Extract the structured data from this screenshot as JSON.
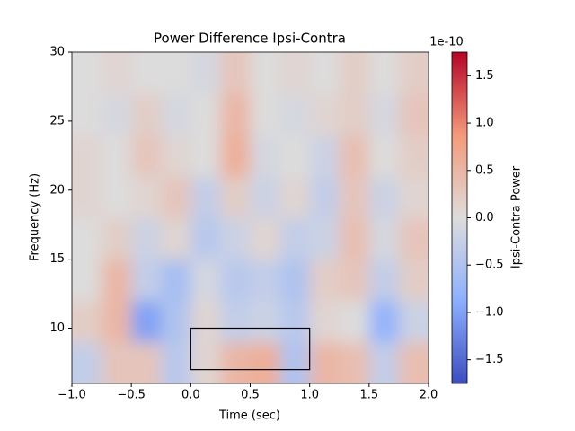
{
  "chart_data": {
    "type": "heatmap",
    "title": "Power Difference Ipsi-Contra",
    "x_label": "Time (sec)",
    "y_label": "Frequency (Hz)",
    "colorbar_label": "Ipsi-Contra Power",
    "colorbar_offset": "1e-10",
    "colormap": "coolwarm",
    "clim": [
      -1.75,
      1.75
    ],
    "xbins": [
      -1,
      -0.75,
      -0.5,
      -0.25,
      0,
      0.25,
      0.5,
      0.75,
      1,
      1.25,
      1.5,
      1.75,
      2
    ],
    "ybins": [
      6,
      9,
      12,
      15,
      18,
      21,
      24,
      27,
      30
    ],
    "z": [
      [
        -0.3,
        0.3,
        0.3,
        -0.4,
        0.1,
        0.5,
        0.6,
        -0.5,
        0.5,
        0.4,
        -0.3,
        0.4
      ],
      [
        0.2,
        0.5,
        -1.0,
        -0.5,
        0.1,
        -0.3,
        -0.2,
        -0.4,
        0.1,
        0,
        -0.8,
        -0.2
      ],
      [
        0,
        0.5,
        -0.3,
        -0.6,
        -0.1,
        -0.4,
        -0.3,
        -0.5,
        0.2,
        0.3,
        -0.3,
        0.2
      ],
      [
        0,
        0.2,
        -0.2,
        0.1,
        -0.4,
        -0.2,
        0.1,
        -0.3,
        -0.2,
        0.4,
        -0.1,
        0.3
      ],
      [
        0.1,
        0,
        0.1,
        0.3,
        -0.3,
        0.2,
        -0.2,
        0.1,
        -0.3,
        0.3,
        -0.2,
        0.1
      ],
      [
        0.1,
        0,
        0.3,
        0.1,
        0,
        0.6,
        -0.1,
        0,
        -0.2,
        0.4,
        0,
        0.2
      ],
      [
        0,
        -0.1,
        0.2,
        -0.1,
        0,
        0.5,
        0,
        -0.1,
        0.1,
        0.2,
        -0.1,
        0.3
      ],
      [
        0,
        0.1,
        0,
        0,
        -0.1,
        0.3,
        0,
        0.1,
        0,
        0.2,
        0,
        0.2
      ]
    ],
    "roi": {
      "x": [
        0,
        1
      ],
      "y": [
        7,
        10
      ]
    },
    "xlim": [
      -1,
      2
    ],
    "xticks": [
      {
        "value": -1,
        "label": "−1.0"
      },
      {
        "value": -0.5,
        "label": "−0.5"
      },
      {
        "value": 0,
        "label": "0.0"
      },
      0.5,
      {
        "value": 1,
        "label": "1.0"
      },
      1.5,
      {
        "value": 2,
        "label": "2.0"
      }
    ],
    "ylim": [
      6,
      30
    ],
    "yticks": [
      10,
      15,
      20,
      25,
      30
    ],
    "cticks": [
      {
        "value": -1.5,
        "label": "−1.5"
      },
      {
        "value": -1,
        "label": "−1.0"
      },
      {
        "value": -0.5,
        "label": "−0.5"
      },
      {
        "value": 0,
        "label": "0.0"
      },
      0.5,
      {
        "value": 1,
        "label": "1.0"
      },
      1.5
    ]
  }
}
